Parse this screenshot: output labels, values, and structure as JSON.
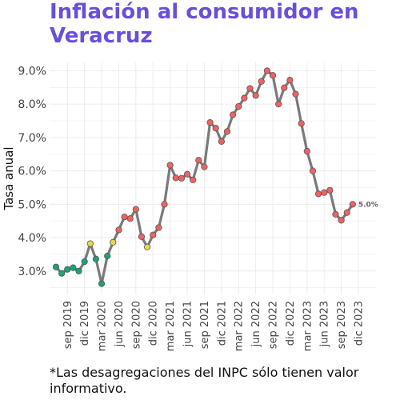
{
  "title": "Inflación al consumidor en Veracruz",
  "footnote": "*Las desagregaciones del INPC sólo tienen valor informativo.",
  "chart_data": {
    "type": "line",
    "ylabel": "Tasa anual",
    "ylim": [
      2.3,
      9.25
    ],
    "y_ticks": [
      3,
      4,
      5,
      6,
      7,
      8,
      9
    ],
    "y_tick_labels": [
      "3.0%",
      "4.0%",
      "5.0%",
      "6.0%",
      "7.0%",
      "8.0%",
      "9.0%"
    ],
    "x_tick_labels": [
      "sep 2019",
      "dic 2019",
      "mar 2020",
      "jun 2020",
      "sep 2020",
      "dic 2020",
      "mar 2021",
      "jun 2021",
      "sep 2021",
      "dic 2021",
      "mar 2022",
      "jun 2022",
      "sep 2022",
      "dic 2022",
      "mar 2023",
      "jun 2023",
      "sep 2023",
      "dic 2023"
    ],
    "x_tick_months": [
      "2019-09",
      "2019-12",
      "2020-03",
      "2020-06",
      "2020-09",
      "2020-12",
      "2021-03",
      "2021-06",
      "2021-09",
      "2021-12",
      "2022-03",
      "2022-06",
      "2022-09",
      "2022-12",
      "2023-03",
      "2023-06",
      "2023-09",
      "2023-12"
    ],
    "grid": true,
    "line_color": "#7a7a7a",
    "point_colors": {
      "low": "#1aa37a",
      "mid": "#e8d84a",
      "high": "#f06262"
    },
    "end_label": "5.0%",
    "points": [
      {
        "month": "2019-07",
        "value": 3.12,
        "color": "low"
      },
      {
        "month": "2019-08",
        "value": 2.93,
        "color": "low"
      },
      {
        "month": "2019-09",
        "value": 3.05,
        "color": "low"
      },
      {
        "month": "2019-10",
        "value": 3.1,
        "color": "low"
      },
      {
        "month": "2019-11",
        "value": 3.0,
        "color": "low"
      },
      {
        "month": "2019-12",
        "value": 3.28,
        "color": "low"
      },
      {
        "month": "2020-01",
        "value": 3.82,
        "color": "mid"
      },
      {
        "month": "2020-02",
        "value": 3.36,
        "color": "low"
      },
      {
        "month": "2020-03",
        "value": 2.62,
        "color": "low"
      },
      {
        "month": "2020-04",
        "value": 3.45,
        "color": "low"
      },
      {
        "month": "2020-05",
        "value": 3.86,
        "color": "mid"
      },
      {
        "month": "2020-06",
        "value": 4.23,
        "color": "high"
      },
      {
        "month": "2020-07",
        "value": 4.62,
        "color": "high"
      },
      {
        "month": "2020-08",
        "value": 4.57,
        "color": "high"
      },
      {
        "month": "2020-09",
        "value": 4.85,
        "color": "high"
      },
      {
        "month": "2020-10",
        "value": 4.03,
        "color": "high"
      },
      {
        "month": "2020-11",
        "value": 3.72,
        "color": "mid"
      },
      {
        "month": "2020-12",
        "value": 4.08,
        "color": "high"
      },
      {
        "month": "2021-01",
        "value": 4.3,
        "color": "high"
      },
      {
        "month": "2021-02",
        "value": 5.0,
        "color": "high"
      },
      {
        "month": "2021-03",
        "value": 6.17,
        "color": "high"
      },
      {
        "month": "2021-04",
        "value": 5.79,
        "color": "high"
      },
      {
        "month": "2021-05",
        "value": 5.78,
        "color": "high"
      },
      {
        "month": "2021-06",
        "value": 5.9,
        "color": "high"
      },
      {
        "month": "2021-07",
        "value": 5.73,
        "color": "high"
      },
      {
        "month": "2021-08",
        "value": 6.32,
        "color": "high"
      },
      {
        "month": "2021-09",
        "value": 6.12,
        "color": "high"
      },
      {
        "month": "2021-10",
        "value": 7.45,
        "color": "high"
      },
      {
        "month": "2021-11",
        "value": 7.28,
        "color": "high"
      },
      {
        "month": "2021-12",
        "value": 6.88,
        "color": "high"
      },
      {
        "month": "2022-01",
        "value": 7.18,
        "color": "high"
      },
      {
        "month": "2022-02",
        "value": 7.68,
        "color": "high"
      },
      {
        "month": "2022-03",
        "value": 7.93,
        "color": "high"
      },
      {
        "month": "2022-04",
        "value": 8.18,
        "color": "high"
      },
      {
        "month": "2022-05",
        "value": 8.47,
        "color": "high"
      },
      {
        "month": "2022-06",
        "value": 8.26,
        "color": "high"
      },
      {
        "month": "2022-07",
        "value": 8.68,
        "color": "high"
      },
      {
        "month": "2022-08",
        "value": 9.0,
        "color": "high"
      },
      {
        "month": "2022-09",
        "value": 8.86,
        "color": "high"
      },
      {
        "month": "2022-10",
        "value": 8.0,
        "color": "high"
      },
      {
        "month": "2022-11",
        "value": 8.49,
        "color": "high"
      },
      {
        "month": "2022-12",
        "value": 8.72,
        "color": "high"
      },
      {
        "month": "2023-01",
        "value": 8.3,
        "color": "high"
      },
      {
        "month": "2023-02",
        "value": 7.42,
        "color": "high"
      },
      {
        "month": "2023-03",
        "value": 6.59,
        "color": "high"
      },
      {
        "month": "2023-04",
        "value": 6.0,
        "color": "high"
      },
      {
        "month": "2023-05",
        "value": 5.31,
        "color": "high"
      },
      {
        "month": "2023-06",
        "value": 5.35,
        "color": "high"
      },
      {
        "month": "2023-07",
        "value": 5.42,
        "color": "high"
      },
      {
        "month": "2023-08",
        "value": 4.7,
        "color": "high"
      },
      {
        "month": "2023-09",
        "value": 4.52,
        "color": "high"
      },
      {
        "month": "2023-10",
        "value": 4.75,
        "color": "high"
      },
      {
        "month": "2023-11",
        "value": 5.0,
        "color": "high"
      }
    ]
  }
}
